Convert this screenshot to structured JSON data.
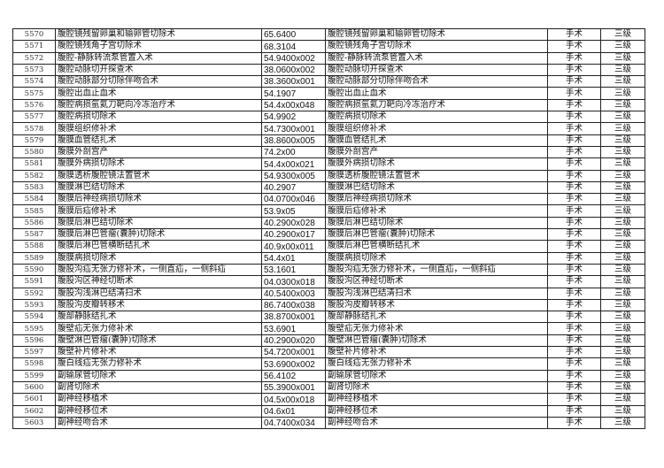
{
  "rows": [
    [
      "5570",
      "腹腔镜残留卵巢和输卵管切除术",
      "65.6400",
      "腹腔镜残留卵巢和输卵管切除术",
      "手术",
      "三级"
    ],
    [
      "5571",
      "腹腔镜残角子宫切除术",
      "68.3104",
      "腹腔镜残角子宫切除术",
      "手术",
      "三级"
    ],
    [
      "5572",
      "腹腔-静脉转流泵管置入术",
      "54.9400x002",
      "腹腔-静脉转流泵管置入术",
      "手术",
      "三级"
    ],
    [
      "5573",
      "腹腔动脉切开探查术",
      "38.0600x002",
      "腹腔动脉切开探查术",
      "手术",
      "三级"
    ],
    [
      "5574",
      "腹腔动脉部分切除伴吻合术",
      "38.3600x001",
      "腹腔动脉部分切除伴吻合术",
      "手术",
      "三级"
    ],
    [
      "5575",
      "腹腔出血止血术",
      "54.1907",
      "腹腔出血止血术",
      "手术",
      "三级"
    ],
    [
      "5576",
      "腹腔病损氩氦刀靶向冷冻治疗术",
      "54.4x00x048",
      "腹腔病损氩氦刀靶向冷冻治疗术",
      "手术",
      "三级"
    ],
    [
      "5577",
      "腹腔病损切除术",
      "54.9902",
      "腹腔病损切除术",
      "手术",
      "三级"
    ],
    [
      "5578",
      "腹膜组织修补术",
      "54.7300x001",
      "腹膜组织修补术",
      "手术",
      "三级"
    ],
    [
      "5579",
      "腹膜血管结扎术",
      "38.8600x005",
      "腹膜血管结扎术",
      "手术",
      "三级"
    ],
    [
      "5580",
      "腹膜外剖宫产",
      "74.2x00",
      "腹膜外剖宫产",
      "手术",
      "三级"
    ],
    [
      "5581",
      "腹膜外病损切除术",
      "54.4x00x021",
      "腹膜外病损切除术",
      "手术",
      "三级"
    ],
    [
      "5582",
      "腹膜透析腹腔镜法置管术",
      "54.9300x005",
      "腹膜透析腹腔镜法置管术",
      "手术",
      "三级"
    ],
    [
      "5583",
      "腹膜淋巴结切除术",
      "40.2907",
      "腹膜淋巴结切除术",
      "手术",
      "三级"
    ],
    [
      "5584",
      "腹膜后神经病损切除术",
      "04.0700x046",
      "腹膜后神经病损切除术",
      "手术",
      "三级"
    ],
    [
      "5585",
      "腹膜后疝修补术",
      "53.9x05",
      "腹膜后疝修补术",
      "手术",
      "三级"
    ],
    [
      "5586",
      "腹膜后淋巴结切除术",
      "40.2900x028",
      "腹膜后淋巴结切除术",
      "手术",
      "三级"
    ],
    [
      "5587",
      "腹膜后淋巴管瘤(囊肿)切除术",
      "40.2900x017",
      "腹膜后淋巴管瘤(囊肿)切除术",
      "手术",
      "三级"
    ],
    [
      "5588",
      "腹膜后淋巴管横断结扎术",
      "40.9x00x011",
      "腹膜后淋巴管横断结扎术",
      "手术",
      "三级"
    ],
    [
      "5589",
      "腹膜病损切除术",
      "54.4x01",
      "腹膜病损切除术",
      "手术",
      "三级"
    ],
    [
      "5590",
      "腹股沟疝无张力修补术，一侧直疝，一侧斜疝",
      "53.1601",
      "腹股沟疝无张力修补术，一侧直疝，一侧斜疝",
      "手术",
      "三级"
    ],
    [
      "5591",
      "腹股沟区神经切断术",
      "04.0300x018",
      "腹股沟区神经切断术",
      "手术",
      "三级"
    ],
    [
      "5592",
      "腹股沟浅淋巴结清扫术",
      "40.5400x003",
      "腹股沟浅淋巴结清扫术",
      "手术",
      "三级"
    ],
    [
      "5593",
      "腹股沟皮瓣转移术",
      "86.7400x038",
      "腹股沟皮瓣转移术",
      "手术",
      "三级"
    ],
    [
      "5594",
      "腹部静脉结扎术",
      "38.8700x001",
      "腹部静脉结扎术",
      "手术",
      "三级"
    ],
    [
      "5595",
      "腹壁疝无张力修补术",
      "53.6901",
      "腹壁疝无张力修补术",
      "手术",
      "三级"
    ],
    [
      "5596",
      "腹壁淋巴管瘤(囊肿)切除术",
      "40.2900x020",
      "腹壁淋巴管瘤(囊肿)切除术",
      "手术",
      "三级"
    ],
    [
      "5597",
      "腹壁补片修补术",
      "54.7200x001",
      "腹壁补片修补术",
      "手术",
      "三级"
    ],
    [
      "5598",
      "腹白线疝无张力修补术",
      "53.6900x002",
      "腹白线疝无张力修补术",
      "手术",
      "三级"
    ],
    [
      "5599",
      "副输尿管切除术",
      "56.4102",
      "副输尿管切除术",
      "手术",
      "三级"
    ],
    [
      "5600",
      "副肾切除术",
      "55.3900x001",
      "副肾切除术",
      "手术",
      "三级"
    ],
    [
      "5601",
      "副神经移植术",
      "04.5x00x018",
      "副神经移植术",
      "手术",
      "三级"
    ],
    [
      "5602",
      "副神经移位术",
      "04.6x01",
      "副神经移位术",
      "手术",
      "三级"
    ],
    [
      "5603",
      "副神经吻合术",
      "04.7400x034",
      "副神经吻合术",
      "手术",
      "三级"
    ]
  ]
}
